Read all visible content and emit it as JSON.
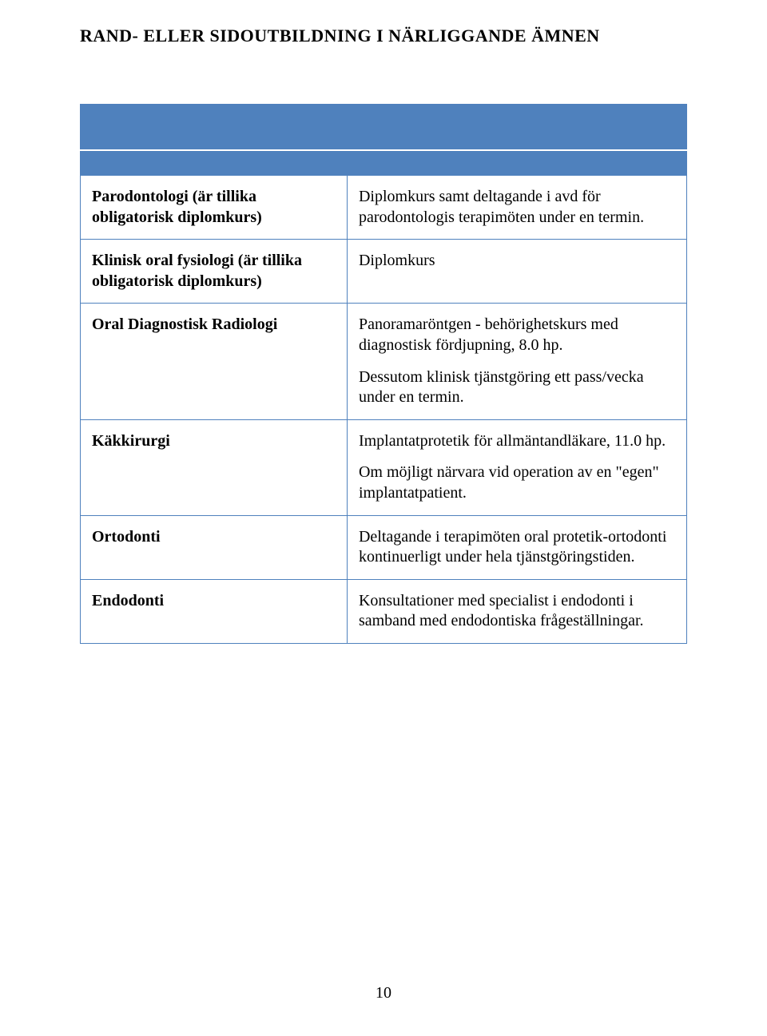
{
  "title": "RAND- ELLER SIDOUTBILDNING I NÄRLIGGANDE ÄMNEN",
  "table": {
    "header_bg": "#4f81bd",
    "border_color": "#4f81bd",
    "rows": [
      {
        "left": "Parodontologi (är tillika obligatorisk diplomkurs)",
        "right": [
          "Diplomkurs samt deltagande i avd för parodontologis terapimöten under en termin."
        ]
      },
      {
        "left": "Klinisk oral fysiologi (är tillika obligatorisk diplomkurs)",
        "right": [
          "Diplomkurs"
        ]
      },
      {
        "left": "Oral Diagnostisk Radiologi",
        "right": [
          "Panoramaröntgen - behörighetskurs med diagnostisk fördjupning, 8.0 hp.",
          "Dessutom klinisk tjänstgöring ett pass/vecka under en termin."
        ]
      },
      {
        "left": "Käkkirurgi",
        "right": [
          "Implantatprotetik för allmäntandläkare, 11.0 hp.",
          "Om möjligt närvara vid operation av en \"egen\" implantatpatient."
        ]
      },
      {
        "left": "Ortodonti",
        "right": [
          "Deltagande i terapimöten oral protetik-ortodonti kontinuerligt under hela tjänstgöringstiden."
        ]
      },
      {
        "left": "Endodonti",
        "right": [
          "Konsultationer med specialist i endodonti i samband med endodontiska frågeställningar."
        ]
      }
    ]
  },
  "page_number": "10"
}
